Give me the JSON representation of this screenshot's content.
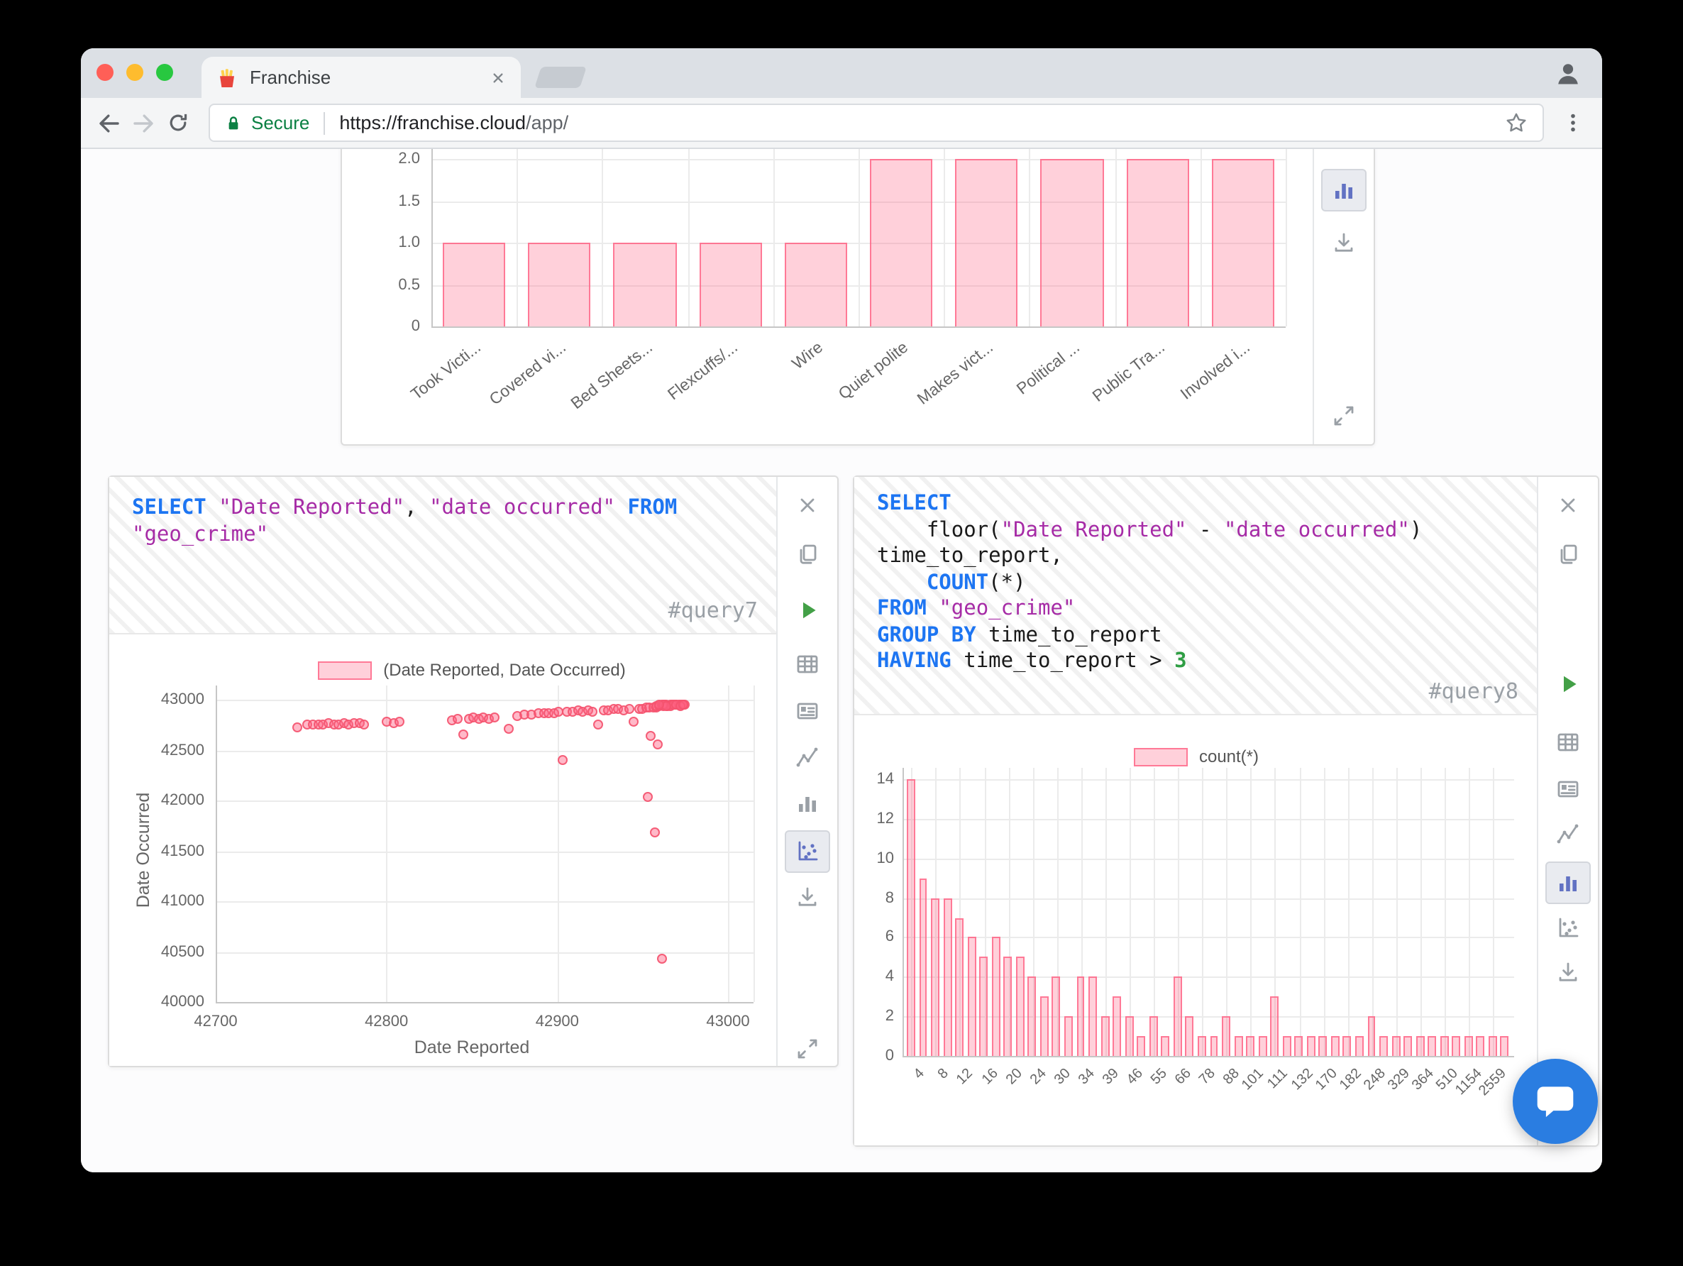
{
  "browser": {
    "tab_title": "Franchise",
    "secure_label": "Secure",
    "url": {
      "scheme_host": "https://franchise.cloud",
      "path": "/app/"
    }
  },
  "colors": {
    "keyword": "#1d75f2",
    "string": "#a62ba6",
    "number": "#2f9e44",
    "bar_fill": "rgba(255,99,132,0.30)",
    "bar_border": "rgba(255,99,132,0.80)",
    "point_fill": "rgba(255,99,132,0.45)",
    "point_border": "rgba(244,83,110,0.90)",
    "selected_icon": "#6272c3",
    "icon_gray": "#9aa0a6",
    "run_green": "#43a047",
    "chat_fab": "#2a7de1",
    "secure_green": "#0b8043"
  },
  "top_cell": {
    "chart_data": {
      "type": "bar",
      "categories": [
        "Took Victi...",
        "Covered vi...",
        "Bed Sheets...",
        "Flexcuffs/...",
        "Wire",
        "Quiet polite",
        "Makes vict...",
        "Political ...",
        "Public Tra...",
        "Involved i..."
      ],
      "values": [
        1,
        1,
        1,
        1,
        1,
        2,
        2,
        2,
        2,
        2
      ],
      "yticks": [
        [
          "2.0",
          2
        ],
        [
          "1.5",
          1.5
        ],
        [
          "1.0",
          1
        ],
        [
          "0.5",
          0.5
        ],
        [
          "0",
          0
        ]
      ],
      "ylim": [
        0,
        2
      ],
      "grid": true
    },
    "toolbar": [
      {
        "icon": "bar-chart",
        "y": 16,
        "selected": true
      },
      {
        "icon": "download",
        "y": 54
      },
      {
        "icon": "expand",
        "y": 176
      }
    ]
  },
  "query7": {
    "id_label": "#query7",
    "sql_lines": [
      [
        {
          "t": "SELECT",
          "c": "kw"
        },
        {
          "t": " ",
          "c": "pl"
        },
        {
          "t": "\"Date Reported\"",
          "c": "str"
        },
        {
          "t": ", ",
          "c": "pl"
        },
        {
          "t": "\"date occurred\"",
          "c": "str"
        },
        {
          "t": " ",
          "c": "pl"
        },
        {
          "t": "FROM",
          "c": "kw"
        }
      ],
      [
        {
          "t": "\"geo_crime\"",
          "c": "str"
        }
      ]
    ],
    "toolbar": [
      {
        "icon": "close",
        "y": 6
      },
      {
        "icon": "copy",
        "y": 40
      },
      {
        "icon": "run",
        "y": 80
      },
      {
        "icon": "table",
        "y": 118
      },
      {
        "icon": "card",
        "y": 151
      },
      {
        "icon": "line-chart",
        "y": 184
      },
      {
        "icon": "bar-chart",
        "y": 216
      },
      {
        "icon": "scatter-chart",
        "y": 249,
        "selected": true
      },
      {
        "icon": "download",
        "y": 282
      },
      {
        "icon": "expand",
        "y": 389
      }
    ],
    "chart_data": {
      "type": "scatter",
      "legend": "(Date Reported, Date Occurred)",
      "xlabel": "Date Reported",
      "ylabel": "Date Occurred",
      "xticks": [
        42700,
        42800,
        42900,
        43000
      ],
      "yticks": [
        43000,
        42500,
        42000,
        41500,
        41000,
        40500,
        40000
      ],
      "xlim": [
        42700,
        43015
      ],
      "ylim": [
        40000,
        43000
      ],
      "grid": true,
      "points": [
        [
          42748,
          42722
        ],
        [
          42754,
          42750
        ],
        [
          42757,
          42760
        ],
        [
          42760,
          42748
        ],
        [
          42763,
          42757
        ],
        [
          42766,
          42764
        ],
        [
          42769,
          42752
        ],
        [
          42772,
          42760
        ],
        [
          42775,
          42767
        ],
        [
          42778,
          42755
        ],
        [
          42781,
          42763
        ],
        [
          42784,
          42770
        ],
        [
          42787,
          42757
        ],
        [
          42800,
          42776
        ],
        [
          42804,
          42768
        ],
        [
          42808,
          42779
        ],
        [
          42838,
          42800
        ],
        [
          42842,
          42812
        ],
        [
          42845,
          42648
        ],
        [
          42848,
          42806
        ],
        [
          42851,
          42818
        ],
        [
          42854,
          42808
        ],
        [
          42857,
          42822
        ],
        [
          42860,
          42814
        ],
        [
          42863,
          42824
        ],
        [
          42872,
          42718
        ],
        [
          42877,
          42845
        ],
        [
          42881,
          42852
        ],
        [
          42885,
          42858
        ],
        [
          42889,
          42862
        ],
        [
          42892,
          42868
        ],
        [
          42895,
          42872
        ],
        [
          42898,
          42860
        ],
        [
          42901,
          42876
        ],
        [
          42903,
          42398
        ],
        [
          42906,
          42880
        ],
        [
          42909,
          42884
        ],
        [
          42912,
          42888
        ],
        [
          42915,
          42878
        ],
        [
          42918,
          42890
        ],
        [
          42921,
          42884
        ],
        [
          42924,
          42758
        ],
        [
          42927,
          42892
        ],
        [
          42930,
          42898
        ],
        [
          42933,
          42902
        ],
        [
          42936,
          42906
        ],
        [
          42939,
          42898
        ],
        [
          42942,
          42910
        ],
        [
          42945,
          42776
        ],
        [
          42948,
          42914
        ],
        [
          42950,
          42902
        ],
        [
          42952,
          42918
        ],
        [
          42954,
          42924
        ],
        [
          42956,
          42920
        ],
        [
          42958,
          42928
        ],
        [
          42955,
          42636
        ],
        [
          42959,
          42552
        ],
        [
          42953,
          42032
        ],
        [
          42957,
          41684
        ],
        [
          42961,
          40424
        ],
        [
          42958,
          42936
        ],
        [
          42960,
          42940
        ],
        [
          42961,
          42944
        ],
        [
          42962,
          42938
        ],
        [
          42963,
          42946
        ],
        [
          42964,
          42950
        ],
        [
          42965,
          42942
        ],
        [
          42966,
          42948
        ],
        [
          42967,
          42952
        ],
        [
          42968,
          42944
        ],
        [
          42969,
          42950
        ],
        [
          42970,
          42946
        ],
        [
          42971,
          42952
        ],
        [
          42972,
          42948
        ],
        [
          42973,
          42954
        ],
        [
          42974,
          42950
        ],
        [
          42975,
          42944
        ],
        [
          42966,
          42940
        ],
        [
          42968,
          42954
        ],
        [
          42962,
          42952
        ],
        [
          42964,
          42936
        ],
        [
          42970,
          42954
        ],
        [
          42972,
          42940
        ],
        [
          42960,
          42952
        ],
        [
          42974,
          42956
        ]
      ]
    }
  },
  "query8": {
    "id_label": "#query8",
    "sql_lines": [
      [
        {
          "t": "SELECT",
          "c": "kw"
        }
      ],
      [
        {
          "t": "    floor(",
          "c": "pl"
        },
        {
          "t": "\"Date Reported\"",
          "c": "str"
        },
        {
          "t": " - ",
          "c": "pl"
        },
        {
          "t": "\"date occurred\"",
          "c": "str"
        },
        {
          "t": ")",
          "c": "pl"
        }
      ],
      [
        {
          "t": "time_to_report,",
          "c": "pl"
        }
      ],
      [
        {
          "t": "    ",
          "c": "pl"
        },
        {
          "t": "COUNT",
          "c": "kw"
        },
        {
          "t": "(*)",
          "c": "pl"
        }
      ],
      [
        {
          "t": "FROM",
          "c": "kw"
        },
        {
          "t": " ",
          "c": "pl"
        },
        {
          "t": "\"geo_crime\"",
          "c": "str"
        }
      ],
      [
        {
          "t": "GROUP BY",
          "c": "kw"
        },
        {
          "t": " time_to_report",
          "c": "pl"
        }
      ],
      [
        {
          "t": "HAVING",
          "c": "kw"
        },
        {
          "t": " time_to_report > ",
          "c": "pl"
        },
        {
          "t": "3",
          "c": "num"
        }
      ]
    ],
    "toolbar": [
      {
        "icon": "close",
        "y": 6
      },
      {
        "icon": "copy",
        "y": 40
      },
      {
        "icon": "run",
        "y": 132
      },
      {
        "icon": "table",
        "y": 173
      },
      {
        "icon": "card",
        "y": 206
      },
      {
        "icon": "line-chart",
        "y": 238
      },
      {
        "icon": "bar-chart",
        "y": 271,
        "selected": true
      },
      {
        "icon": "scatter-chart",
        "y": 304
      },
      {
        "icon": "download",
        "y": 335
      }
    ],
    "chart_data": {
      "type": "bar",
      "legend": "count(*)",
      "yticks": [
        14,
        12,
        10,
        8,
        6,
        4,
        2,
        0
      ],
      "ylim": [
        0,
        14
      ],
      "grid": true,
      "tick_labels": [
        "4",
        "8",
        "12",
        "16",
        "20",
        "24",
        "30",
        "34",
        "39",
        "46",
        "55",
        "66",
        "78",
        "88",
        "101",
        "111",
        "132",
        "170",
        "182",
        "248",
        "329",
        "364",
        "510",
        "1154",
        "2559"
      ],
      "values": [
        14,
        9,
        8,
        8,
        7,
        6,
        5,
        6,
        5,
        5,
        4,
        3,
        4,
        2,
        4,
        4,
        2,
        3,
        2,
        1,
        2,
        1,
        4,
        2,
        1,
        1,
        2,
        1,
        1,
        1,
        3,
        1,
        1,
        1,
        1,
        1,
        1,
        1,
        2,
        1,
        1,
        1,
        1,
        1,
        1,
        1,
        1,
        1,
        1,
        1
      ]
    }
  }
}
